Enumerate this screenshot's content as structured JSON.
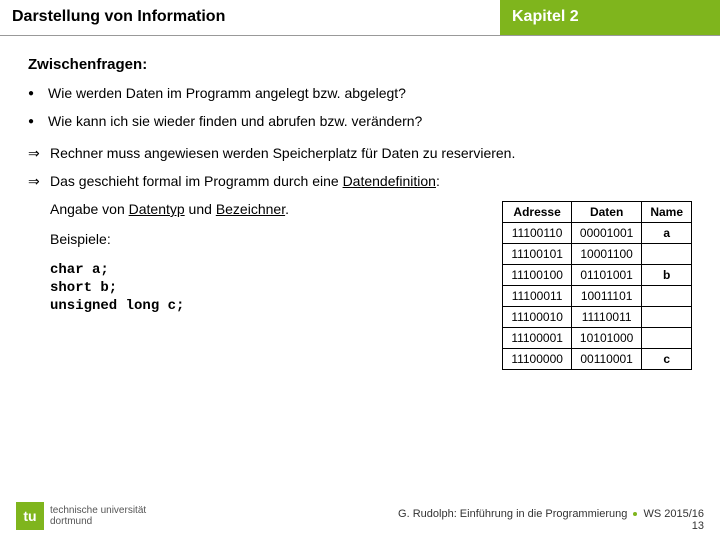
{
  "header": {
    "left": "Darstellung von Information",
    "right": "Kapitel 2"
  },
  "section_title": "Zwischenfragen:",
  "bullets": [
    "Wie werden Daten im Programm angelegt bzw. abgelegt?",
    "Wie kann ich sie wieder finden und abrufen bzw. verändern?"
  ],
  "arrows": [
    {
      "pre": "Rechner muss angewiesen werden Speicherplatz für Daten zu reservieren."
    },
    {
      "pre": "Das geschieht formal im Programm durch eine ",
      "u": "Datendefinition",
      "post": ":"
    }
  ],
  "left": {
    "line1_pre": "Angabe von ",
    "line1_u1": "Datentyp",
    "line1_mid": " und ",
    "line1_u2": "Bezeichner",
    "line1_post": ".",
    "beispiele": "Beispiele:",
    "code1": "char a;",
    "code2": "short b;",
    "code3": "unsigned long c;"
  },
  "table": {
    "headers": [
      "Adresse",
      "Daten",
      "Name"
    ],
    "rows": [
      [
        "11100110",
        "00001001",
        "a"
      ],
      [
        "11100101",
        "10001100",
        ""
      ],
      [
        "11100100",
        "01101001",
        "b"
      ],
      [
        "11100011",
        "10011101",
        ""
      ],
      [
        "11100010",
        "11110011",
        ""
      ],
      [
        "11100001",
        "10101000",
        ""
      ],
      [
        "11100000",
        "00110001",
        "c"
      ]
    ]
  },
  "footer": {
    "line1_pre": "G. Rudolph: Einführung in die Programmierung ",
    "line1_post": " WS 2015/16",
    "line2": "13"
  },
  "logo": {
    "mark": "tu",
    "text1": "technische universität",
    "text2": "dortmund"
  },
  "colors": {
    "brand": "#7fb51d"
  }
}
